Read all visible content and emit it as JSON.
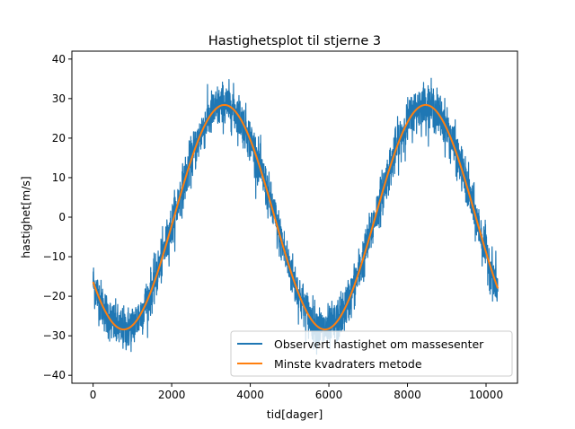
{
  "chart_data": {
    "type": "line",
    "title": "Hastighetsplot til stjerne 3",
    "xlabel": "tid[dager]",
    "ylabel": "hastighet[m/s]",
    "xlim": [
      -540,
      10800
    ],
    "ylim": [
      -42,
      42
    ],
    "xticks": [
      0,
      2000,
      4000,
      6000,
      8000,
      10000
    ],
    "yticks": [
      -40,
      -30,
      -20,
      -10,
      0,
      10,
      20,
      30,
      40
    ],
    "grid": false,
    "legend_position": "lower right",
    "model": {
      "amplitude": 28.4,
      "period_days": 5120,
      "peak_day": 3340,
      "x_start": 0,
      "x_end": 10300
    },
    "noise_amplitude": 5,
    "series": [
      {
        "name": "Observert hastighet om massesenter",
        "color": "#1f77b4",
        "kind": "observed"
      },
      {
        "name": "Minste kvadraters metode",
        "color": "#ff7f0e",
        "kind": "fit"
      }
    ]
  }
}
